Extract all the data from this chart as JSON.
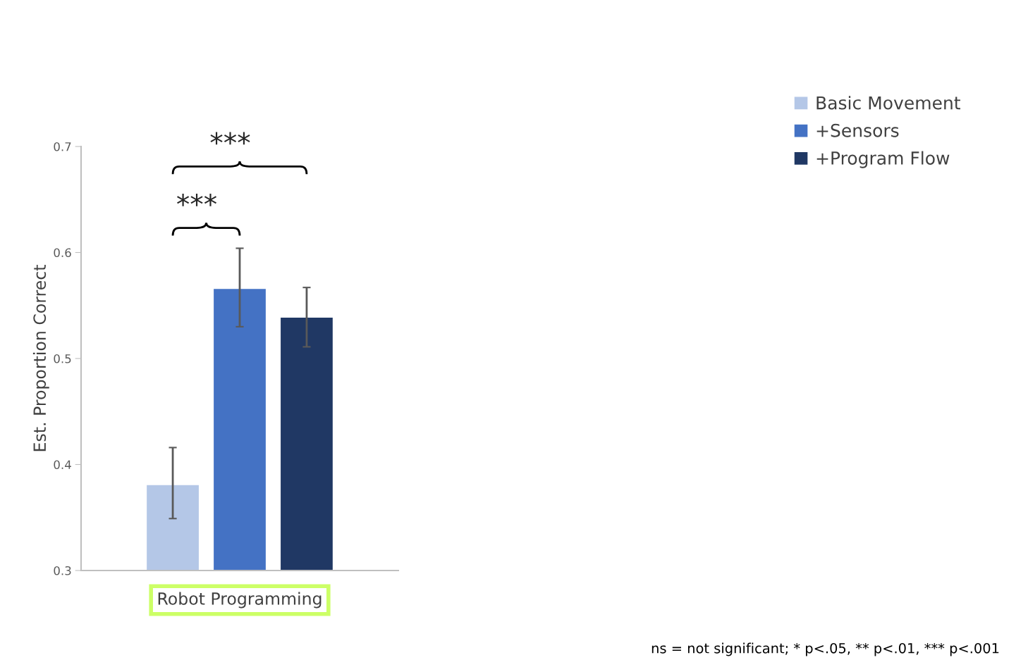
{
  "chart_data": {
    "type": "bar",
    "ylabel": "Est. Proportion Correct",
    "categories": [
      "Robot Programming"
    ],
    "series": [
      {
        "name": "Basic Movement",
        "color": "#b4c7e7",
        "values": [
          0.381
        ],
        "errors": [
          [
            0.349,
            0.416
          ]
        ]
      },
      {
        "name": "+Sensors",
        "color": "#4472c4",
        "values": [
          0.566
        ],
        "errors": [
          [
            0.53,
            0.604
          ]
        ]
      },
      {
        "name": "+Program Flow",
        "color": "#203864",
        "values": [
          0.539
        ],
        "errors": [
          [
            0.511,
            0.567
          ]
        ]
      }
    ],
    "ylim": [
      0.3,
      0.7
    ],
    "yticks": [
      0.3,
      0.4,
      0.5,
      0.6,
      0.7
    ],
    "grid": false,
    "legend": "top right",
    "annotations": [
      "***",
      "***",
      "ns = not significant; * p<.05, ** p<.01, *** p<.001"
    ]
  }
}
